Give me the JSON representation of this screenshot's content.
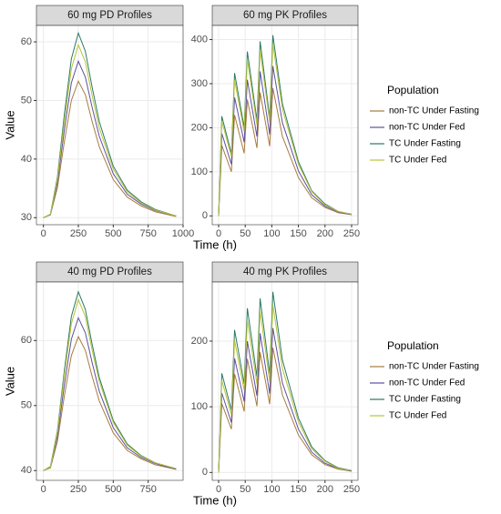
{
  "chart_data": [
    {
      "type": "line",
      "title": "60 mg PD Profiles",
      "ylabel": "Value",
      "xlabel": "Time (h)",
      "x": [
        0,
        50,
        100,
        150,
        200,
        250,
        300,
        350,
        400,
        500,
        600,
        700,
        800,
        950
      ],
      "xlim": [
        -50,
        1000
      ],
      "xticks": [
        0,
        250,
        500,
        750,
        1000
      ],
      "ylim": [
        28.8,
        62.8
      ],
      "yticks": [
        30,
        40,
        50,
        60
      ],
      "series": [
        {
          "color": "#a67c3d",
          "values": [
            30,
            30.5,
            35.1,
            43.0,
            50.0,
            53.3,
            51.0,
            46.3,
            42.1,
            36.5,
            33.5,
            32.0,
            31.0,
            30.2
          ]
        },
        {
          "color": "#5e4fa2",
          "values": [
            30,
            30.5,
            35.9,
            45.0,
            53.0,
            56.7,
            54.0,
            48.7,
            43.9,
            37.5,
            34.0,
            32.3,
            31.2,
            30.3
          ]
        },
        {
          "color": "#2a7a62",
          "values": [
            30,
            30.6,
            36.9,
            47.6,
            57.1,
            61.5,
            58.4,
            52.1,
            46.4,
            38.8,
            34.7,
            32.7,
            31.4,
            30.3
          ]
        },
        {
          "color": "#b8c43a",
          "values": [
            30,
            30.6,
            36.5,
            46.5,
            55.4,
            59.5,
            56.6,
            50.7,
            45.3,
            38.3,
            34.4,
            32.5,
            31.3,
            30.3
          ]
        }
      ]
    },
    {
      "type": "line",
      "title": "60 mg PK Profiles",
      "legend_title": "Population",
      "x": [
        0,
        6,
        24,
        30,
        48,
        54,
        72,
        78,
        96,
        102,
        120,
        150,
        175,
        200,
        225,
        250
      ],
      "xlim": [
        -12,
        262
      ],
      "xticks": [
        0,
        50,
        100,
        150,
        200,
        250
      ],
      "ylim": [
        -20,
        432
      ],
      "yticks": [
        0,
        100,
        200,
        300,
        400
      ],
      "series": [
        {
          "name": "non-TC Under Fasting",
          "color": "#a67c3d",
          "values": [
            0,
            160,
            100,
            229,
            142,
            264,
            154,
            280,
            158,
            290,
            180,
            87,
            41,
            19,
            7,
            3
          ]
        },
        {
          "name": "non-TC Under Fed",
          "color": "#5e4fa2",
          "values": [
            0,
            187,
            117,
            269,
            167,
            309,
            180,
            328,
            185,
            340,
            211,
            102,
            48,
            22,
            9,
            3
          ]
        },
        {
          "name": "TC Under Fasting",
          "color": "#2a7a62",
          "values": [
            0,
            226,
            141,
            324,
            201,
            373,
            217,
            396,
            223,
            410,
            254,
            123,
            57,
            27,
            10,
            4
          ]
        },
        {
          "name": "TC Under Fed",
          "color": "#b8c43a",
          "values": [
            0,
            215,
            135,
            308,
            191,
            355,
            207,
            376,
            213,
            390,
            242,
            117,
            55,
            25,
            10,
            4
          ]
        }
      ]
    },
    {
      "type": "line",
      "title": "40 mg PD Profiles",
      "ylabel": "Value",
      "xlabel": "Time (h)",
      "x": [
        0,
        50,
        100,
        150,
        200,
        250,
        300,
        350,
        400,
        500,
        600,
        700,
        800,
        950
      ],
      "xlim": [
        -50,
        1000
      ],
      "xticks": [
        0,
        250,
        500,
        750
      ],
      "ylim": [
        38.5,
        69
      ],
      "yticks": [
        40,
        50,
        60
      ],
      "series": [
        {
          "color": "#a67c3d",
          "values": [
            40,
            40.4,
            44.5,
            51.5,
            57.7,
            60.6,
            58.5,
            54.4,
            50.7,
            45.8,
            43.1,
            41.8,
            40.9,
            40.2
          ]
        },
        {
          "color": "#5e4fa2",
          "values": [
            40,
            40.5,
            45.2,
            53.2,
            60.2,
            63.5,
            61.2,
            56.5,
            52.2,
            46.6,
            43.5,
            42.0,
            41.1,
            40.2
          ]
        },
        {
          "color": "#2a7a62",
          "values": [
            40,
            40.6,
            46.1,
            55.4,
            63.7,
            67.5,
            64.8,
            59.3,
            54.3,
            47.7,
            44.1,
            42.3,
            41.2,
            40.3
          ]
        },
        {
          "color": "#b8c43a",
          "values": [
            40,
            40.5,
            45.8,
            54.7,
            62.6,
            66.3,
            63.7,
            58.4,
            53.7,
            47.4,
            43.9,
            42.2,
            41.2,
            40.3
          ]
        }
      ]
    },
    {
      "type": "line",
      "title": "40 mg PK Profiles",
      "legend_title": "Population",
      "x": [
        0,
        6,
        24,
        30,
        48,
        54,
        72,
        78,
        96,
        102,
        120,
        150,
        175,
        200,
        225,
        250
      ],
      "xlim": [
        -12,
        262
      ],
      "xticks": [
        0,
        50,
        100,
        150,
        200,
        250
      ],
      "ylim": [
        -12,
        290
      ],
      "yticks": [
        0,
        100,
        200
      ],
      "series": [
        {
          "name": "non-TC Under Fasting",
          "color": "#a67c3d",
          "values": [
            0,
            105,
            66,
            150,
            93,
            173,
            101,
            183,
            104,
            190,
            118,
            57,
            27,
            12,
            5,
            2
          ]
        },
        {
          "name": "non-TC Under Fed",
          "color": "#5e4fa2",
          "values": [
            0,
            121,
            76,
            174,
            108,
            200,
            117,
            212,
            120,
            220,
            136,
            66,
            31,
            14,
            6,
            2
          ]
        },
        {
          "name": "TC Under Fasting",
          "color": "#2a7a62",
          "values": [
            0,
            151,
            95,
            217,
            135,
            250,
            146,
            265,
            150,
            275,
            171,
            83,
            39,
            18,
            7,
            3
          ]
        },
        {
          "name": "TC Under Fed",
          "color": "#b8c43a",
          "values": [
            0,
            140,
            88,
            201,
            125,
            232,
            135,
            246,
            139,
            255,
            158,
            77,
            36,
            17,
            6,
            3
          ]
        }
      ]
    }
  ]
}
